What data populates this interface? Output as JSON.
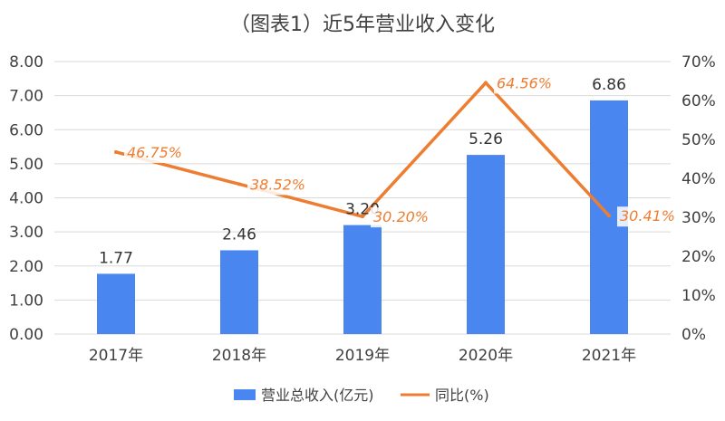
{
  "chart_data": {
    "type": "bar",
    "title": "（图表1）近5年营业收入变化",
    "categories": [
      "2017年",
      "2018年",
      "2019年",
      "2020年",
      "2021年"
    ],
    "series": [
      {
        "name": "营业总收入(亿元)",
        "type": "bar",
        "axis": "left",
        "values": [
          1.77,
          2.46,
          3.2,
          5.26,
          6.86
        ],
        "labels": [
          "1.77",
          "2.46",
          "3.20",
          "5.26",
          "6.86"
        ]
      },
      {
        "name": "同比(%)",
        "type": "line",
        "axis": "right",
        "values": [
          46.75,
          38.52,
          30.2,
          64.56,
          30.41
        ],
        "labels": [
          "46.75%",
          "38.52%",
          "30.20%",
          "64.56%",
          "30.41%"
        ]
      }
    ],
    "y_left": {
      "min": 0,
      "max": 8,
      "ticks": [
        "0.00",
        "1.00",
        "2.00",
        "3.00",
        "4.00",
        "5.00",
        "6.00",
        "7.00",
        "8.00"
      ]
    },
    "y_right": {
      "min": 0,
      "max": 70,
      "ticks": [
        "0%",
        "10%",
        "20%",
        "30%",
        "40%",
        "50%",
        "60%",
        "70%"
      ]
    },
    "grid": true,
    "legend": "bottom",
    "colors": {
      "bar": "#4a86f0",
      "line": "#ed7d31",
      "grid": "#d9d9d9"
    }
  }
}
